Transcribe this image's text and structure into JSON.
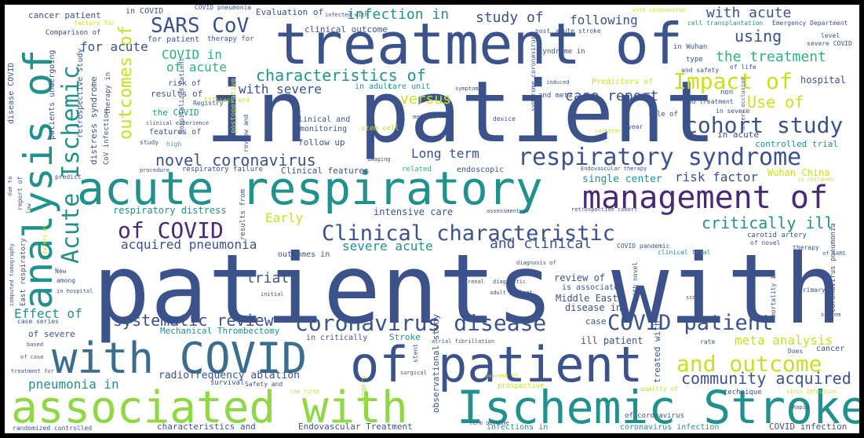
{
  "colors": {
    "frame": "#000000",
    "background": "#ffffff",
    "palette_name": "viridis",
    "indigo": "#3b528b",
    "purple": "#482878",
    "teal": "#21918c",
    "green": "#2db27d",
    "lime": "#8fd744",
    "yellow": "#c8e020"
  },
  "words": {
    "patients_with": "patients with",
    "in_patient": "in patient",
    "treatment_of": "treatment of",
    "acute_respiratory": "acute respiratory",
    "analysis_of": "analysis of",
    "with_covid": "with COVID",
    "of_patient": "of patient",
    "associated_with": "associated with",
    "ischemic_stroke": "Ischemic Stroke",
    "management_of": "management of",
    "respiratory_syndrome": "respiratory syndrome",
    "coronavirus_disease": "coronavirus disease",
    "clinical_characteristic": "Clinical characteristic",
    "covid_patient": "COVID patient",
    "impact_of": "Impact of",
    "cohort_study": "cohort study",
    "acute_ischemic": "Acute Ischemic",
    "outcomes_of": "outcomes of",
    "sars_cov": "SARS CoV",
    "and_outcome": "and outcome",
    "community_acquired": "community acquired",
    "critically_ill": "critically ill",
    "of_covid": "of COVID",
    "systematic_review": "systematic review",
    "novel_coronavirus": "novel coronavirus",
    "characteristics_of": "characteristics of",
    "infection_in": "infection in",
    "study_of": "study of",
    "with_acute": "with acute",
    "using": "using",
    "the_treatment": "the treatment",
    "use_of": "Use of",
    "case_report": "case report",
    "versus": "versus",
    "with_severe": "with severe",
    "covid_in": "COVID in",
    "of_acute": "of acute",
    "for_acute": "for acute",
    "long_term": "Long term",
    "risk_factor": "risk factor",
    "early": "Early",
    "and_clinical": "and clinical",
    "severe_acute": "severe acute",
    "acquired_pneumonia": "acquired pneumonia",
    "trial": "trial",
    "effect_of": "Effect of",
    "pneumonia_in": "pneumonia in",
    "meta_analysis": "meta analysis",
    "radiofrequency_ablation": "radiofrequency ablation",
    "following": "following",
    "single_center": "single center",
    "hospital": "hospital",
    "controlled_trial": "controlled trial",
    "wuhan_china": "Wuhan China",
    "respiratory_distress": "respiratory distress",
    "intensive_care": "intensive care",
    "mechanical_thrombectomy": "Mechanical Thrombectomy",
    "ill_patient": "ill patient",
    "middle_east": "Middle East",
    "review_of": "review of",
    "disease_in": "disease in",
    "stroke": "Stroke",
    "case": "case",
    "of_severe": "of severe",
    "in_critically": "in critically",
    "endovascular_treatment": "Endovascular Treatment",
    "characteristics_and": "characteristics and",
    "infections_in": "infections in",
    "coronavirus_infection": "coronavirus infection",
    "covid_infection": "COVID infection",
    "randomized_controlled": "randomized controlled",
    "in_covid": "in COVID",
    "cancer_patient": "cancer patient",
    "evaluation_of": "Evaluation of",
    "covid_pneumonia": "COVID pneumonia",
    "with_coronavirus": "with coronavirus",
    "emergency_department": "Emergency Department",
    "cell_transplantation": "cell transplantation",
    "factors_for": "factors for",
    "comparison_of": "Comparison of",
    "for_patient": "for patient",
    "therapy_for": "therapy for",
    "clinical_outcome": "clinical outcome",
    "acute_stroke": "acute stroke",
    "infected_with": "infected with",
    "post": "post",
    "in_wuhan": "in Wuhan",
    "type": "type",
    "of_life": "of life",
    "level": "level",
    "severe_covid": "severe COVID",
    "syndrome_in": "syndrome in",
    "syndrome_coronavirus": "syndrome coronavirus",
    "and_safety": "and safety",
    "non": "non",
    "and_treatment": "and treatment",
    "in_severe": "in severe",
    "artery_occlusion": "artery occlusion",
    "in_adult": "in adult",
    "care_unit": "care unit",
    "efficacy_and": "Efficacy and",
    "predictors_of": "Predictors of",
    "and_meta": "and meta",
    "role_of": "role of",
    "induced": "induced",
    "symptom": "symptom",
    "device": "device",
    "medical": "medical",
    "year": "year",
    "catheter": "catheter",
    "results_of": "results of",
    "registry": "Registry",
    "the_covid": "the COVID",
    "clinical_experience": "clinical experience",
    "risk_of": "risk of",
    "features_of": "features of",
    "study": "study",
    "high": "high",
    "clinical_and": "Clinical and",
    "monitoring": "monitoring",
    "follow_up": "follow up",
    "stem_cell": "stem cell",
    "imaging": "imaging",
    "related": "related",
    "endoscopic": "endoscopic",
    "endovascular_therapy": "Endovascular therapy",
    "in_children": "in children",
    "respiratory_failure": "respiratory failure",
    "clinical_features": "Clinical features",
    "procedure": "procedure",
    "predict": "predict",
    "report_of": "report of",
    "low": "low",
    "due_to": "due to",
    "disease_covid": "disease COVID",
    "patients_undergoing": "patients undergoing",
    "retrospective_study": "retrospective study",
    "therapy_in": "therapy in",
    "covid_infection_small": "CoV infection",
    "distress_syndrome": "distress syndrome",
    "hospitalized_patient": "Hospitalized Patient",
    "postoperative": "postoperative",
    "review_and": "review and",
    "in_acute": "in acute",
    "assessment_of": "assessment of",
    "retrospective_cohort": "retrospective cohort",
    "carotid_artery": "carotid artery",
    "of_novel": "of novel",
    "therapy": "therapy",
    "clinical_trial": "clinical trial",
    "covid_pandemic": "COVID pandemic",
    "of_sars": "of SARS",
    "coronavirus_pneumonia": "coronavirus pneumonia",
    "outcomes_in": "outcomes in",
    "safety_of": "safety of",
    "results_from": "results from",
    "new": "New",
    "among": "among",
    "in_hospital": "in hospital",
    "east_respiratory": "East respiratory",
    "computed_tomography": "computed tomography",
    "initial": "initial",
    "renal": "renal",
    "diagnostic": "diagnostic",
    "adult_patient": "adult patient",
    "is_associated": "is associated",
    "with_novel": "with novel",
    "mortality_in": "mortality in",
    "score": "score",
    "primary": "primary",
    "system": "system",
    "diagnosis_of": "diagnosis of",
    "case_series": "case series",
    "based": "based",
    "of_case": "of case",
    "treatment_for": "treatment for",
    "atrial_fibrillation": "atrial fibrillation",
    "stent": "stent",
    "surgery": "surgery",
    "surgical": "surgical",
    "observational_study": "observational study",
    "outcome_of": "outcome of",
    "prospective": "prospective",
    "survival": "survival",
    "safety_and": "Safety and",
    "the_first": "the first",
    "treated_with": "treated with",
    "quality_of": "quality of",
    "rate": "rate",
    "does": "Does",
    "cancer": "cancer",
    "technique": "technique",
    "virus_infection": "virus infection",
    "rapid": "Rapid",
    "term_outcome": "term outcome",
    "of_coronavirus": "of coronavirus"
  }
}
